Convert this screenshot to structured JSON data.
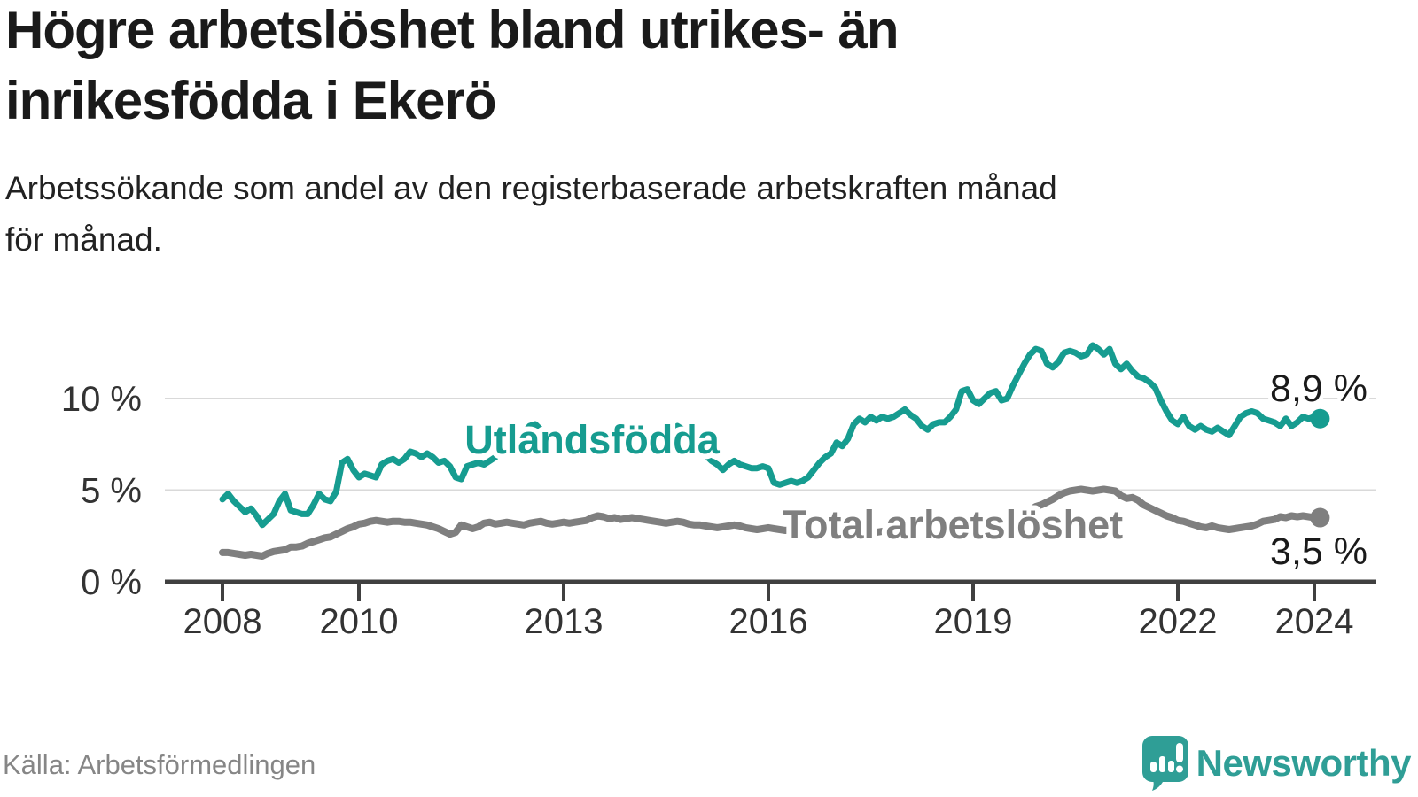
{
  "header": {
    "title": "Högre arbetslöshet bland utrikes- än inrikesfödda i Ekerö",
    "title_lines": [
      "Högre arbetslöshet bland utrikes- än",
      "inrikesfödda i Ekerö"
    ],
    "subtitle": "Arbetssökande som andel av den registerbaserade arbetskraften månad för månad.",
    "subtitle_lines": [
      "Arbetssökande som andel av den registerbaserade arbetskraften månad",
      "för månad."
    ]
  },
  "chart_data": {
    "type": "line",
    "title": "Högre arbetslöshet bland utrikes- än inrikesfödda i Ekerö",
    "subtitle": "Arbetssökande som andel av den registerbaserade arbetskraften månad för månad.",
    "unit": "%",
    "x_range": {
      "start": "2008-01",
      "end": "2024-02",
      "frequency": "monthly"
    },
    "x_ticks": [
      2008,
      2010,
      2013,
      2016,
      2019,
      2022,
      2024
    ],
    "y_ticks": [
      {
        "value": 0,
        "label": "0 %"
      },
      {
        "value": 5,
        "label": "5 %"
      },
      {
        "value": 10,
        "label": "10 %"
      }
    ],
    "ylim": [
      0,
      13.2
    ],
    "grid": "horizontal",
    "legend_position": "inline-labels",
    "series": [
      {
        "name": "Utlandsfödda",
        "color": "#169c90",
        "end_value": 8.9,
        "end_label": "8,9 %",
        "values": [
          4.5,
          4.8,
          4.4,
          4.1,
          3.8,
          4.0,
          3.6,
          3.1,
          3.4,
          3.7,
          4.4,
          4.8,
          3.9,
          3.8,
          3.7,
          3.7,
          4.2,
          4.8,
          4.5,
          4.4,
          4.9,
          6.5,
          6.7,
          6.1,
          5.7,
          5.9,
          5.8,
          5.7,
          6.4,
          6.6,
          6.7,
          6.5,
          6.7,
          7.1,
          7.0,
          6.8,
          7.0,
          6.8,
          6.5,
          6.6,
          6.3,
          5.7,
          5.6,
          6.3,
          6.4,
          6.5,
          6.4,
          6.6,
          6.8,
          7.1,
          7.3,
          7.6,
          7.8,
          8.1,
          8.5,
          8.6,
          8.3,
          8.0,
          7.8,
          7.6,
          7.4,
          7.3,
          7.5,
          7.7,
          7.8,
          7.6,
          7.4,
          7.3,
          7.5,
          7.4,
          7.3,
          7.4,
          7.5,
          7.6,
          7.8,
          7.7,
          7.9,
          7.8,
          8.0,
          8.2,
          8.5,
          8.3,
          7.9,
          7.6,
          7.2,
          6.9,
          6.6,
          6.4,
          6.1,
          6.4,
          6.6,
          6.4,
          6.3,
          6.2,
          6.2,
          6.3,
          6.2,
          5.4,
          5.3,
          5.4,
          5.5,
          5.4,
          5.5,
          5.7,
          6.1,
          6.5,
          6.8,
          7.0,
          7.6,
          7.4,
          7.8,
          8.6,
          8.9,
          8.7,
          9.0,
          8.8,
          9.0,
          8.9,
          9.0,
          9.2,
          9.4,
          9.1,
          8.9,
          8.5,
          8.3,
          8.6,
          8.7,
          8.7,
          9.0,
          9.4,
          10.4,
          10.5,
          9.9,
          9.7,
          10.0,
          10.3,
          10.4,
          9.9,
          10.0,
          10.7,
          11.3,
          11.9,
          12.4,
          12.7,
          12.6,
          11.9,
          11.7,
          12.0,
          12.5,
          12.6,
          12.5,
          12.3,
          12.4,
          12.9,
          12.7,
          12.4,
          12.7,
          11.9,
          11.6,
          11.9,
          11.5,
          11.2,
          11.1,
          10.9,
          10.6,
          9.9,
          9.3,
          8.8,
          8.6,
          9.0,
          8.5,
          8.3,
          8.5,
          8.3,
          8.2,
          8.4,
          8.2,
          8.0,
          8.5,
          9.0,
          9.2,
          9.3,
          9.2,
          8.9,
          8.8,
          8.7,
          8.5,
          8.9,
          8.5,
          8.7,
          9.0,
          8.9,
          9.0,
          8.9
        ]
      },
      {
        "name": "Total arbetslöshet",
        "color": "#7f7f7f",
        "end_value": 3.5,
        "end_label": "3,5 %",
        "values": [
          1.6,
          1.6,
          1.55,
          1.5,
          1.45,
          1.5,
          1.45,
          1.4,
          1.55,
          1.65,
          1.7,
          1.75,
          1.9,
          1.9,
          1.95,
          2.1,
          2.2,
          2.3,
          2.4,
          2.45,
          2.6,
          2.75,
          2.9,
          3.0,
          3.15,
          3.2,
          3.3,
          3.35,
          3.3,
          3.25,
          3.3,
          3.3,
          3.25,
          3.25,
          3.2,
          3.15,
          3.1,
          3.0,
          2.9,
          2.75,
          2.6,
          2.7,
          3.1,
          3.0,
          2.9,
          3.0,
          3.2,
          3.25,
          3.15,
          3.2,
          3.25,
          3.2,
          3.15,
          3.1,
          3.2,
          3.25,
          3.3,
          3.2,
          3.15,
          3.2,
          3.25,
          3.2,
          3.25,
          3.3,
          3.35,
          3.5,
          3.6,
          3.55,
          3.45,
          3.5,
          3.4,
          3.45,
          3.5,
          3.45,
          3.4,
          3.35,
          3.3,
          3.25,
          3.2,
          3.25,
          3.3,
          3.25,
          3.15,
          3.1,
          3.1,
          3.05,
          3.0,
          2.95,
          3.0,
          3.05,
          3.1,
          3.05,
          2.95,
          2.9,
          2.85,
          2.9,
          2.95,
          2.9,
          2.85,
          2.8,
          2.85,
          2.9,
          2.95,
          2.9,
          2.85,
          2.9,
          2.85,
          2.8,
          2.85,
          2.8,
          2.75,
          2.8,
          2.85,
          2.8,
          2.75,
          2.7,
          2.75,
          2.8,
          2.75,
          2.7,
          2.7,
          2.65,
          2.6,
          2.65,
          2.7,
          2.65,
          2.6,
          2.55,
          2.6,
          2.65,
          2.6,
          2.65,
          2.6,
          2.6,
          2.65,
          2.7,
          2.8,
          2.9,
          3.0,
          3.2,
          3.4,
          3.7,
          3.9,
          4.1,
          4.2,
          4.35,
          4.5,
          4.7,
          4.85,
          4.95,
          5.0,
          5.05,
          5.0,
          4.95,
          5.0,
          5.05,
          5.0,
          4.95,
          4.7,
          4.55,
          4.6,
          4.45,
          4.2,
          4.05,
          3.9,
          3.75,
          3.6,
          3.5,
          3.35,
          3.3,
          3.2,
          3.1,
          3.0,
          2.95,
          3.05,
          2.95,
          2.9,
          2.85,
          2.9,
          2.95,
          3.0,
          3.05,
          3.15,
          3.3,
          3.35,
          3.4,
          3.55,
          3.5,
          3.6,
          3.55,
          3.6,
          3.55,
          3.5,
          3.5
        ]
      }
    ]
  },
  "footer": {
    "source": "Källa: Arbetsförmedlingen",
    "brand": "Newsworthy"
  },
  "colors": {
    "accent_teal": "#169c90",
    "series_gray": "#7f7f7f",
    "logo_teal": "#2f9e96",
    "grid": "#d9d9d9",
    "axis": "#404040",
    "text_dark": "#1a1a1a",
    "text_gray": "#868686"
  }
}
